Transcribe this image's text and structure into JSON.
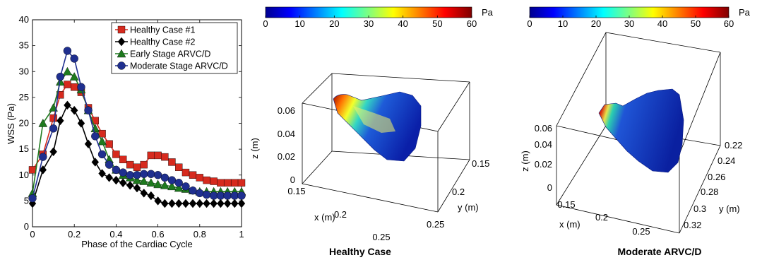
{
  "chart_data": [
    {
      "type": "line",
      "title": "",
      "xlabel": "Phase of the Cardiac Cycle",
      "ylabel": "WSS (Pa)",
      "xlim": [
        0,
        1
      ],
      "ylim": [
        0,
        40
      ],
      "xticks": [
        "0",
        "0.2",
        "0.4",
        "0.6",
        "0.8",
        "1"
      ],
      "yticks": [
        "0",
        "5",
        "10",
        "15",
        "20",
        "25",
        "30",
        "35",
        "40"
      ],
      "legend_position": "top-right",
      "grid": false,
      "series": [
        {
          "name": "Healthy Case #1",
          "color": "#d62a1e",
          "marker": "square",
          "x": [
            0,
            0.05,
            0.1,
            0.133,
            0.167,
            0.2,
            0.233,
            0.267,
            0.3,
            0.333,
            0.367,
            0.4,
            0.433,
            0.467,
            0.5,
            0.533,
            0.567,
            0.6,
            0.633,
            0.667,
            0.7,
            0.733,
            0.767,
            0.8,
            0.833,
            0.867,
            0.9,
            0.933,
            0.967,
            1.0
          ],
          "y": [
            11,
            14,
            21,
            25.5,
            27.5,
            27,
            26,
            23,
            20.5,
            18,
            16,
            14,
            13,
            12,
            11.5,
            12,
            13.8,
            13.8,
            13.5,
            12.5,
            11.5,
            10.5,
            10,
            9.5,
            9,
            8.8,
            8.5,
            8.5,
            8.5,
            8.5
          ]
        },
        {
          "name": "Healthy Case #2",
          "color": "#000000",
          "marker": "diamond",
          "x": [
            0,
            0.05,
            0.1,
            0.133,
            0.167,
            0.2,
            0.233,
            0.267,
            0.3,
            0.333,
            0.367,
            0.4,
            0.433,
            0.467,
            0.5,
            0.533,
            0.567,
            0.6,
            0.633,
            0.667,
            0.7,
            0.733,
            0.767,
            0.8,
            0.833,
            0.867,
            0.9,
            0.933,
            0.967,
            1.0
          ],
          "y": [
            4.5,
            11,
            14.5,
            20.5,
            23.5,
            22.5,
            20,
            16,
            12.5,
            10.3,
            9.5,
            9,
            8.5,
            8,
            7.5,
            6.5,
            6,
            5,
            4.5,
            4.5,
            4.5,
            4.5,
            4.5,
            4.5,
            4.5,
            4.5,
            4.5,
            4.5,
            4.5,
            4.5
          ]
        },
        {
          "name": "Early Stage ARVC/D",
          "color": "#1e7a1e",
          "marker": "triangle",
          "x": [
            0,
            0.05,
            0.1,
            0.133,
            0.167,
            0.2,
            0.233,
            0.267,
            0.3,
            0.333,
            0.367,
            0.4,
            0.433,
            0.467,
            0.5,
            0.533,
            0.567,
            0.6,
            0.633,
            0.667,
            0.7,
            0.733,
            0.767,
            0.8,
            0.833,
            0.867,
            0.9,
            0.933,
            0.967,
            1.0
          ],
          "y": [
            6.5,
            20,
            23,
            28,
            30,
            29,
            26.5,
            22.5,
            19,
            16.5,
            13,
            11,
            10,
            9.5,
            9,
            8.8,
            8.5,
            8.2,
            8,
            7.8,
            7.5,
            7.3,
            7,
            6.8,
            6.8,
            6.8,
            6.8,
            6.8,
            6.8,
            6.8
          ]
        },
        {
          "name": "Moderate Stage ARVC/D",
          "color": "#1f2f8f",
          "marker": "circle",
          "x": [
            0,
            0.05,
            0.1,
            0.133,
            0.167,
            0.2,
            0.233,
            0.267,
            0.3,
            0.333,
            0.367,
            0.4,
            0.433,
            0.467,
            0.5,
            0.533,
            0.567,
            0.6,
            0.633,
            0.667,
            0.7,
            0.733,
            0.767,
            0.8,
            0.833,
            0.867,
            0.9,
            0.933,
            0.967,
            1.0
          ],
          "y": [
            5.5,
            13.5,
            19,
            29,
            34,
            32.5,
            27,
            22.5,
            17.5,
            14,
            12,
            11,
            10.5,
            10,
            10,
            10.2,
            10.2,
            10,
            9.5,
            9,
            8.5,
            7.8,
            7,
            6.5,
            6.2,
            6,
            6,
            6,
            6,
            6
          ]
        }
      ]
    },
    {
      "type": "heatmap",
      "title": "Healthy Case",
      "colorbar_unit": "Pa",
      "colorbar_ticks": [
        "0",
        "10",
        "20",
        "30",
        "40",
        "50",
        "60"
      ],
      "xlabel": "x (m)",
      "ylabel": "y (m)",
      "zlabel": "z (m)",
      "xticks": [
        "0.15",
        "0.2",
        "0.25"
      ],
      "yticks": [
        "0.15",
        "0.2",
        "0.25"
      ],
      "zticks": [
        "0",
        "0.02",
        "0.04",
        "0.06"
      ]
    },
    {
      "type": "heatmap",
      "title": "Moderate ARVC/D",
      "colorbar_unit": "Pa",
      "colorbar_ticks": [
        "0",
        "10",
        "20",
        "30",
        "40",
        "50",
        "60"
      ],
      "xlabel": "x (m)",
      "ylabel": "y (m)",
      "zlabel": "z (m)",
      "xticks": [
        "0.15",
        "0.2",
        "0.25"
      ],
      "yticks": [
        "0.22",
        "0.24",
        "0.26",
        "0.28",
        "0.3",
        "0.32"
      ],
      "zticks": [
        "0",
        "0.02",
        "0.04",
        "0.06"
      ]
    }
  ]
}
